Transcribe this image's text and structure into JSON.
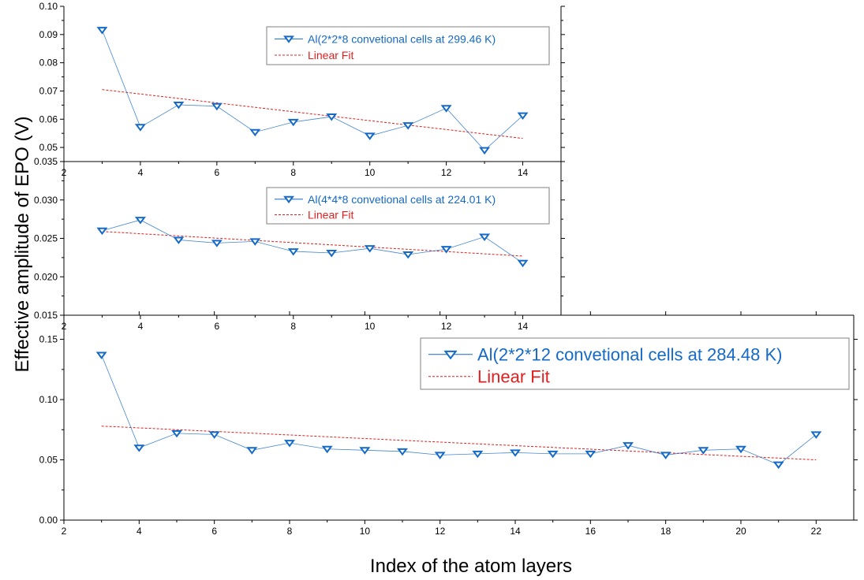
{
  "figure": {
    "ylabel": "Effective amplitude of EPO (V)",
    "xlabel": "Index of the atom layers"
  },
  "colors": {
    "series": "#1569c7",
    "fit": "#e02020",
    "axis": "#000000"
  },
  "chart_data": [
    {
      "type": "line",
      "xlim": [
        2,
        15
      ],
      "ylim": [
        0.045,
        0.1
      ],
      "xticks": [
        "2",
        "4",
        "6",
        "8",
        "10",
        "12",
        "14"
      ],
      "yticks": [
        "0.05",
        "0.06",
        "0.07",
        "0.08",
        "0.09",
        "0.10"
      ],
      "series": [
        {
          "name": "Al(2*2*8 convetional cells at 299.46 K)",
          "x": [
            3,
            4,
            5,
            6,
            7,
            8,
            9,
            10,
            11,
            12,
            13,
            14
          ],
          "y": [
            0.0916,
            0.0572,
            0.0651,
            0.0646,
            0.0554,
            0.059,
            0.0609,
            0.0541,
            0.0578,
            0.0639,
            0.049,
            0.0613
          ]
        }
      ],
      "fit": {
        "name": "Linear Fit",
        "x": [
          3,
          14
        ],
        "y": [
          0.0705,
          0.0532
        ]
      }
    },
    {
      "type": "line",
      "xlim": [
        2,
        15
      ],
      "ylim": [
        0.015,
        0.035
      ],
      "xticks": [
        "2",
        "4",
        "6",
        "8",
        "10",
        "12",
        "14"
      ],
      "yticks": [
        "0.015",
        "0.020",
        "0.025",
        "0.030",
        "0.035"
      ],
      "series": [
        {
          "name": "Al(4*4*8 convetional cells at 224.01 K)",
          "x": [
            3,
            4,
            5,
            6,
            7,
            8,
            9,
            10,
            11,
            12,
            13,
            14
          ],
          "y": [
            0.026,
            0.0274,
            0.0248,
            0.0244,
            0.0246,
            0.0233,
            0.0231,
            0.0237,
            0.0229,
            0.0236,
            0.0252,
            0.0218
          ]
        }
      ],
      "fit": {
        "name": "Linear Fit",
        "x": [
          3,
          14
        ],
        "y": [
          0.0259,
          0.0227
        ]
      }
    },
    {
      "type": "line",
      "xlim": [
        2,
        23
      ],
      "ylim": [
        0,
        0.17
      ],
      "xticks": [
        "2",
        "4",
        "6",
        "8",
        "10",
        "12",
        "14",
        "16",
        "18",
        "20",
        "22"
      ],
      "yticks": [
        "0.00",
        "0.05",
        "0.10",
        "0.15"
      ],
      "series": [
        {
          "name": "Al(2*2*12 convetional cells at 284.48 K)",
          "x": [
            3,
            4,
            5,
            6,
            7,
            8,
            9,
            10,
            11,
            12,
            13,
            14,
            15,
            16,
            17,
            18,
            19,
            20,
            21,
            22
          ],
          "y": [
            0.137,
            0.06,
            0.072,
            0.071,
            0.058,
            0.064,
            0.059,
            0.058,
            0.057,
            0.054,
            0.055,
            0.056,
            0.055,
            0.055,
            0.062,
            0.054,
            0.058,
            0.059,
            0.046,
            0.071
          ]
        }
      ],
      "fit": {
        "name": "Linear Fit",
        "x": [
          3,
          22
        ],
        "y": [
          0.078,
          0.05
        ]
      }
    }
  ]
}
